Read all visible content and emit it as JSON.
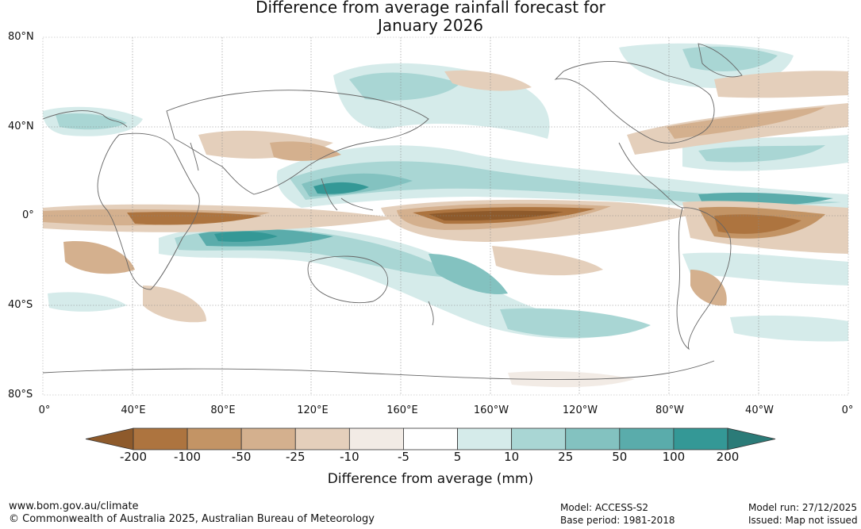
{
  "title_line1": "Difference from average rainfall forecast for",
  "title_line2": "January 2026",
  "lat_labels": [
    "80°N",
    "40°N",
    "0°",
    "40°S",
    "80°S"
  ],
  "lon_labels": [
    "0°",
    "40°E",
    "80°E",
    "120°E",
    "160°E",
    "160°W",
    "120°W",
    "80°W",
    "40°W",
    "0°"
  ],
  "legend": {
    "ticks": [
      "-200",
      "-100",
      "-50",
      "-25",
      "-10",
      "-5",
      "5",
      "10",
      "25",
      "50",
      "100",
      "200"
    ],
    "colors": [
      "#8e5a2b",
      "#ad743f",
      "#c39465",
      "#d4b08e",
      "#e4cfbb",
      "#f2ebe5",
      "#ffffff",
      "#d5ebea",
      "#a9d6d4",
      "#83c2c0",
      "#5aacab",
      "#349896",
      "#2b7b78"
    ],
    "units": "Difference from average (mm)"
  },
  "footer": {
    "website": "www.bom.gov.au/climate",
    "copyright": "© Commonwealth of Australia 2025, Australian Bureau of Meteorology",
    "model": "Model: ACCESS-S2",
    "base_period": "Base period: 1981-2018",
    "model_run": "Model run: 27/12/2025",
    "issued": "Issued: Map not issued"
  }
}
